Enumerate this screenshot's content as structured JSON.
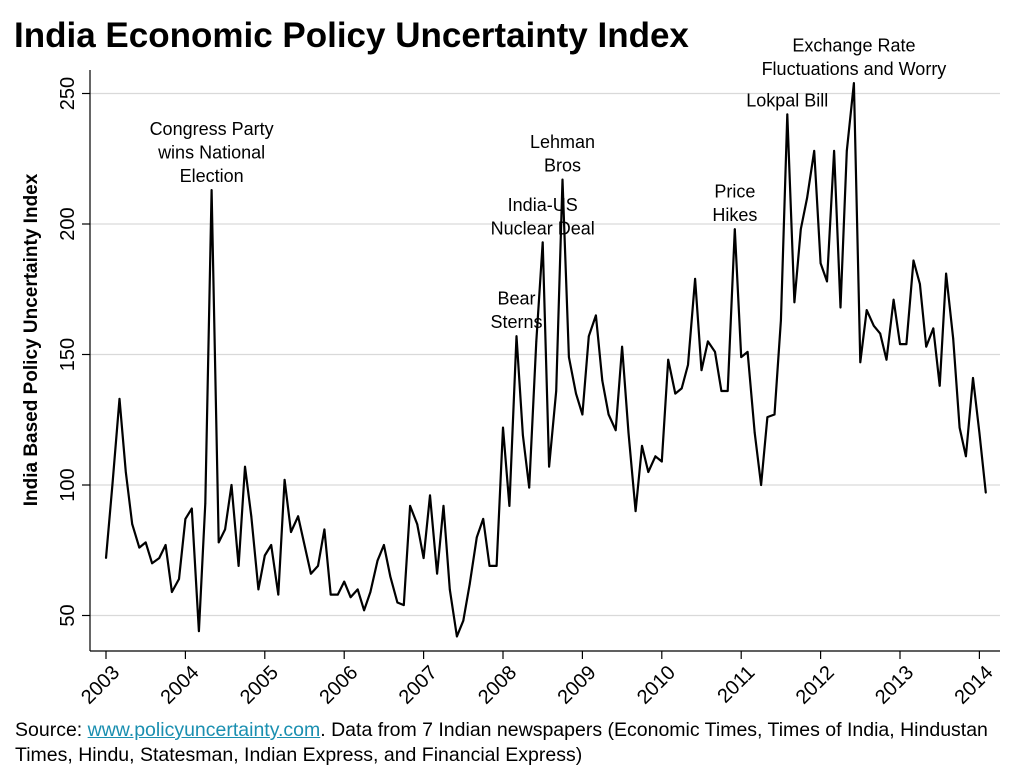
{
  "title": "India Economic Policy Uncertainty Index",
  "source": {
    "prefix": "Source: ",
    "link": "www.policyuncertainty.com",
    "suffix": ". Data from 7 Indian newspapers (Economic Times, Times of India, Hindustan Times, Hindu, Statesman, Indian Express, and Financial Express)"
  },
  "chart_data": {
    "type": "line",
    "title": "India Economic Policy Uncertainty Index",
    "xlabel": "",
    "ylabel": "India Based Policy Uncertainty Index",
    "xlim": [
      2003,
      2014.15
    ],
    "ylim": [
      37,
      260
    ],
    "xticks": [
      2003,
      2004,
      2005,
      2006,
      2007,
      2008,
      2009,
      2010,
      2011,
      2012,
      2013,
      2014
    ],
    "yticks": [
      50,
      100,
      150,
      200,
      250
    ],
    "grid": "horizontal",
    "line_color": "#000000",
    "series": [
      {
        "values": [
          [
            2003.0,
            72
          ],
          [
            2003.08,
            100
          ],
          [
            2003.17,
            133
          ],
          [
            2003.25,
            105
          ],
          [
            2003.33,
            85
          ],
          [
            2003.42,
            76
          ],
          [
            2003.5,
            78
          ],
          [
            2003.58,
            70
          ],
          [
            2003.67,
            72
          ],
          [
            2003.75,
            77
          ],
          [
            2003.83,
            59
          ],
          [
            2003.92,
            64
          ],
          [
            2004.0,
            87
          ],
          [
            2004.08,
            91
          ],
          [
            2004.17,
            44
          ],
          [
            2004.25,
            93
          ],
          [
            2004.33,
            213
          ],
          [
            2004.42,
            78
          ],
          [
            2004.5,
            83
          ],
          [
            2004.58,
            100
          ],
          [
            2004.67,
            69
          ],
          [
            2004.75,
            107
          ],
          [
            2004.83,
            88
          ],
          [
            2004.92,
            60
          ],
          [
            2005.0,
            73
          ],
          [
            2005.08,
            77
          ],
          [
            2005.17,
            58
          ],
          [
            2005.25,
            102
          ],
          [
            2005.33,
            82
          ],
          [
            2005.42,
            88
          ],
          [
            2005.5,
            77
          ],
          [
            2005.58,
            66
          ],
          [
            2005.67,
            69
          ],
          [
            2005.75,
            83
          ],
          [
            2005.83,
            58
          ],
          [
            2005.92,
            58
          ],
          [
            2006.0,
            63
          ],
          [
            2006.08,
            57
          ],
          [
            2006.17,
            60
          ],
          [
            2006.25,
            52
          ],
          [
            2006.33,
            59
          ],
          [
            2006.42,
            71
          ],
          [
            2006.5,
            77
          ],
          [
            2006.58,
            65
          ],
          [
            2006.67,
            55
          ],
          [
            2006.75,
            54
          ],
          [
            2006.83,
            92
          ],
          [
            2006.92,
            85
          ],
          [
            2007.0,
            72
          ],
          [
            2007.08,
            96
          ],
          [
            2007.17,
            66
          ],
          [
            2007.25,
            92
          ],
          [
            2007.33,
            60
          ],
          [
            2007.42,
            42
          ],
          [
            2007.5,
            48
          ],
          [
            2007.58,
            62
          ],
          [
            2007.67,
            80
          ],
          [
            2007.75,
            87
          ],
          [
            2007.83,
            69
          ],
          [
            2007.92,
            69
          ],
          [
            2008.0,
            122
          ],
          [
            2008.08,
            92
          ],
          [
            2008.17,
            157
          ],
          [
            2008.25,
            119
          ],
          [
            2008.33,
            99
          ],
          [
            2008.42,
            155
          ],
          [
            2008.5,
            193
          ],
          [
            2008.58,
            107
          ],
          [
            2008.67,
            136
          ],
          [
            2008.75,
            217
          ],
          [
            2008.83,
            149
          ],
          [
            2008.92,
            135
          ],
          [
            2009.0,
            127
          ],
          [
            2009.08,
            157
          ],
          [
            2009.17,
            165
          ],
          [
            2009.25,
            140
          ],
          [
            2009.33,
            127
          ],
          [
            2009.42,
            121
          ],
          [
            2009.5,
            153
          ],
          [
            2009.58,
            120
          ],
          [
            2009.67,
            90
          ],
          [
            2009.75,
            115
          ],
          [
            2009.83,
            105
          ],
          [
            2009.92,
            111
          ],
          [
            2010.0,
            109
          ],
          [
            2010.08,
            148
          ],
          [
            2010.17,
            135
          ],
          [
            2010.25,
            137
          ],
          [
            2010.33,
            146
          ],
          [
            2010.42,
            179
          ],
          [
            2010.5,
            144
          ],
          [
            2010.58,
            155
          ],
          [
            2010.67,
            151
          ],
          [
            2010.75,
            136
          ],
          [
            2010.83,
            136
          ],
          [
            2010.92,
            198
          ],
          [
            2011.0,
            149
          ],
          [
            2011.08,
            151
          ],
          [
            2011.17,
            120
          ],
          [
            2011.25,
            100
          ],
          [
            2011.33,
            126
          ],
          [
            2011.42,
            127
          ],
          [
            2011.5,
            163
          ],
          [
            2011.58,
            242
          ],
          [
            2011.67,
            170
          ],
          [
            2011.75,
            198
          ],
          [
            2011.83,
            210
          ],
          [
            2011.92,
            228
          ],
          [
            2012.0,
            185
          ],
          [
            2012.08,
            178
          ],
          [
            2012.17,
            228
          ],
          [
            2012.25,
            168
          ],
          [
            2012.33,
            228
          ],
          [
            2012.42,
            254
          ],
          [
            2012.5,
            147
          ],
          [
            2012.58,
            167
          ],
          [
            2012.67,
            161
          ],
          [
            2012.75,
            158
          ],
          [
            2012.83,
            148
          ],
          [
            2012.92,
            171
          ],
          [
            2013.0,
            154
          ],
          [
            2013.08,
            154
          ],
          [
            2013.17,
            186
          ],
          [
            2013.25,
            177
          ],
          [
            2013.33,
            153
          ],
          [
            2013.42,
            160
          ],
          [
            2013.5,
            138
          ],
          [
            2013.58,
            181
          ],
          [
            2013.67,
            156
          ],
          [
            2013.75,
            122
          ],
          [
            2013.83,
            111
          ],
          [
            2013.92,
            141
          ],
          [
            2014.0,
            120
          ],
          [
            2014.08,
            97
          ]
        ]
      }
    ],
    "annotations": [
      {
        "lines": [
          "Congress Party",
          "wins National",
          "Election"
        ],
        "x": 2004.33,
        "y": 213
      },
      {
        "lines": [
          "India-US",
          "Nuclear Deal"
        ],
        "x": 2008.5,
        "y": 193
      },
      {
        "lines": [
          "Bear",
          "Sterns"
        ],
        "x": 2008.17,
        "y": 157
      },
      {
        "lines": [
          "Lehman",
          "Bros"
        ],
        "x": 2008.75,
        "y": 217
      },
      {
        "lines": [
          "Price",
          "Hikes"
        ],
        "x": 2010.92,
        "y": 198
      },
      {
        "lines": [
          "Lokpal Bill"
        ],
        "x": 2011.58,
        "y": 242
      },
      {
        "lines": [
          "Exchange Rate",
          "Fluctuations and Worry"
        ],
        "x": 2012.42,
        "y": 254
      }
    ]
  }
}
